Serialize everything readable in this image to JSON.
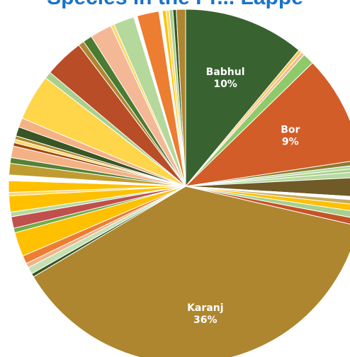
{
  "chart_data": {
    "type": "pie",
    "title": "Species in the Pr... Lappe",
    "start_angle_deg": 0,
    "direction": "clockwise",
    "legend": "none",
    "data_labels": "inside",
    "slices": [
      {
        "name": "Babhul",
        "label": "Babhul",
        "percent_label": "10%",
        "value": 10.5,
        "color": "#386331"
      },
      {
        "name": "",
        "value": 0.3,
        "color": "#f5c65a"
      },
      {
        "name": "",
        "value": 0.3,
        "color": "#f6bb8f"
      },
      {
        "name": "",
        "value": 1.0,
        "color": "#8fca6a"
      },
      {
        "name": "Bor",
        "label": "Bor",
        "percent_label": "9%",
        "value": 9.4,
        "color": "#d25d28"
      },
      {
        "name": "",
        "value": 0.4,
        "color": "#8d7a2c"
      },
      {
        "name": "",
        "value": 0.3,
        "color": "#b6dba0"
      },
      {
        "name": "",
        "value": 0.3,
        "color": "#a8d08d"
      },
      {
        "name": "",
        "value": 0.5,
        "color": "#b6dba0"
      },
      {
        "name": "",
        "value": 1.7,
        "color": "#6f5a28"
      },
      {
        "name": "",
        "value": 0.3,
        "color": "#ffffff"
      },
      {
        "name": "",
        "value": 0.4,
        "color": "#c7aa59"
      },
      {
        "name": "",
        "value": 0.6,
        "color": "#ffc000"
      },
      {
        "name": "",
        "value": 0.6,
        "color": "#a8d08d"
      },
      {
        "name": "",
        "value": 0.6,
        "color": "#c45427"
      },
      {
        "name": "Karanj",
        "label": "Karanj",
        "percent_label": "36%",
        "value": 36.0,
        "color": "#ae862f"
      },
      {
        "name": "",
        "value": 0.3,
        "color": "#375623"
      },
      {
        "name": "",
        "value": 0.6,
        "color": "#c5e0b3"
      },
      {
        "name": "",
        "value": 0.4,
        "color": "#f4b183"
      },
      {
        "name": "",
        "value": 0.7,
        "color": "#ed7d31"
      },
      {
        "name": "",
        "value": 2.1,
        "color": "#ffc000"
      },
      {
        "name": "",
        "value": 0.4,
        "color": "#70ad47"
      },
      {
        "name": "",
        "value": 1.0,
        "color": "#c0504d"
      },
      {
        "name": "",
        "value": 0.4,
        "color": "#b2dba0"
      },
      {
        "name": "",
        "value": 1.4,
        "color": "#ffc000"
      },
      {
        "name": "",
        "value": 0.3,
        "color": "#ffd966"
      },
      {
        "name": "",
        "value": 1.0,
        "color": "#ffc000"
      },
      {
        "name": "",
        "value": 0.5,
        "color": "#ffffff"
      },
      {
        "name": "",
        "value": 1.0,
        "color": "#bf9c2f"
      },
      {
        "name": "",
        "value": 0.5,
        "color": "#548235"
      },
      {
        "name": "",
        "value": 1.0,
        "color": "#f4b183"
      },
      {
        "name": "",
        "value": 0.3,
        "color": "#9e480e"
      },
      {
        "name": "",
        "value": 0.3,
        "color": "#ffd966"
      },
      {
        "name": "",
        "value": 0.3,
        "color": "#ae862f"
      },
      {
        "name": "",
        "value": 0.8,
        "color": "#375623"
      },
      {
        "name": "",
        "value": 0.8,
        "color": "#f4b183"
      },
      {
        "name": "",
        "value": 4.0,
        "color": "#ffd54a"
      },
      {
        "name": "",
        "value": 0.6,
        "color": "#a8d08d"
      },
      {
        "name": "",
        "value": 3.4,
        "color": "#b84d27"
      },
      {
        "name": "",
        "value": 0.5,
        "color": "#ae862f"
      },
      {
        "name": "",
        "value": 0.8,
        "color": "#4b7a31"
      },
      {
        "name": "",
        "value": 1.9,
        "color": "#f4b896"
      },
      {
        "name": "",
        "value": 0.3,
        "color": "#ffd966"
      },
      {
        "name": "",
        "value": 1.8,
        "color": "#b5d99c"
      },
      {
        "name": "",
        "value": 0.3,
        "color": "#ffffff"
      },
      {
        "name": "",
        "value": 1.9,
        "color": "#ed7d31"
      },
      {
        "name": "",
        "value": 0.3,
        "color": "#ffffff"
      },
      {
        "name": "",
        "value": 0.3,
        "color": "#ffc000"
      },
      {
        "name": "",
        "value": 0.3,
        "color": "#ffd966"
      },
      {
        "name": "",
        "value": 0.3,
        "color": "#a8d08d"
      },
      {
        "name": "",
        "value": 0.3,
        "color": "#375623"
      },
      {
        "name": "",
        "value": 0.8,
        "color": "#ae862f"
      }
    ]
  }
}
